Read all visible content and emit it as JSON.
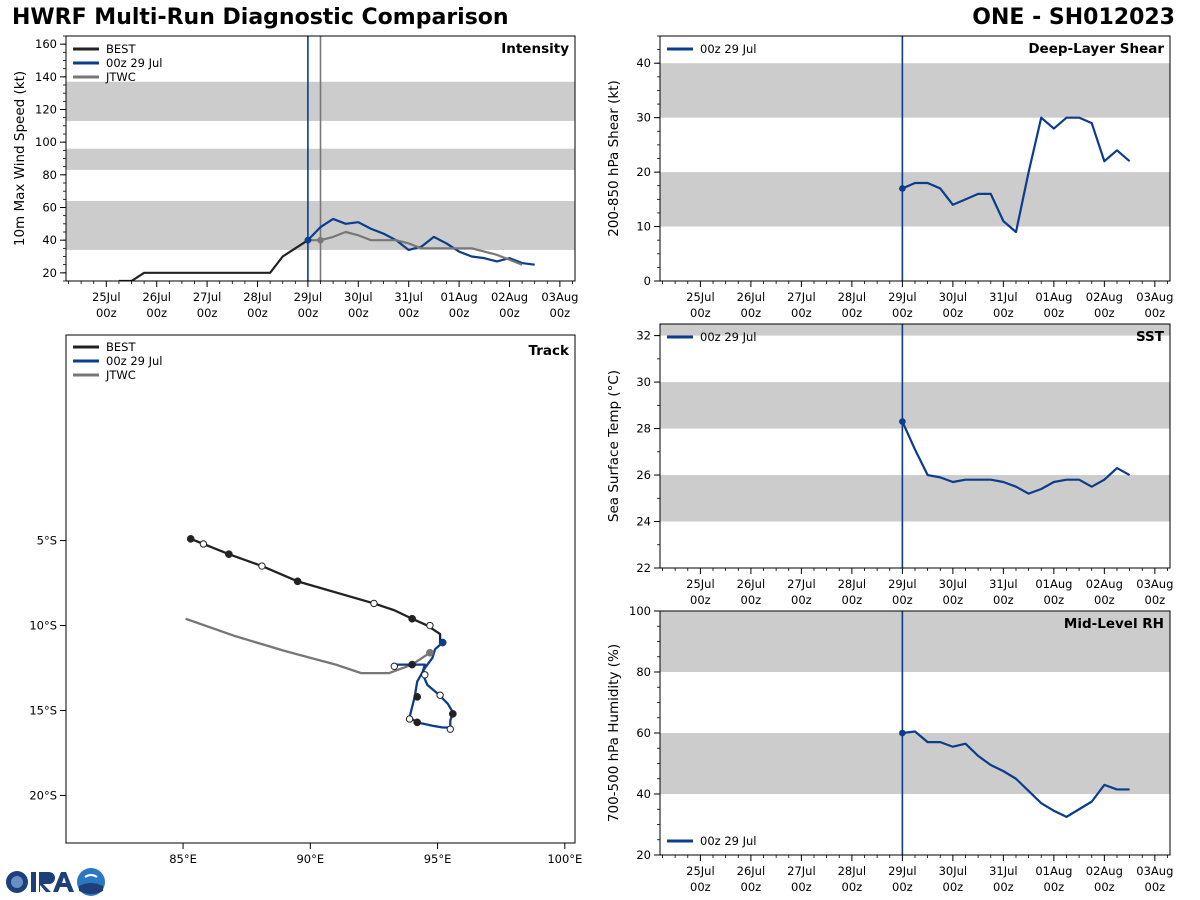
{
  "header": {
    "title": "HWRF Multi-Run Diagnostic Comparison",
    "storm": "ONE - SH012023"
  },
  "colors": {
    "best": "#222222",
    "run": "#0b3d8c",
    "jtwc": "#777777",
    "band": "#cccccc",
    "init_line": "#0b3d8c",
    "jtwc_line": "#777777"
  },
  "time_axis": {
    "labels_top": [
      "25Jul",
      "26Jul",
      "27Jul",
      "28Jul",
      "29Jul",
      "30Jul",
      "31Jul",
      "01Aug",
      "02Aug",
      "03Aug"
    ],
    "labels_bottom": [
      "00z",
      "00z",
      "00z",
      "00z",
      "00z",
      "00z",
      "00z",
      "00z",
      "00z",
      "00z"
    ]
  },
  "chart_data": [
    {
      "id": "intensity",
      "type": "line",
      "title": "Intensity",
      "ylabel": "10m Max Wind Speed (kt)",
      "ylim": [
        15,
        165
      ],
      "yticks": [
        20,
        40,
        60,
        80,
        100,
        120,
        140,
        160
      ],
      "xlim_days": [
        -4.8,
        5.3
      ],
      "bands": [
        [
          34,
          64
        ],
        [
          83,
          96
        ],
        [
          113,
          137
        ]
      ],
      "vlines": [
        {
          "day": 0,
          "series": "run"
        },
        {
          "day": 0.25,
          "series": "jtwc"
        }
      ],
      "legend": [
        "BEST",
        "00z 29 Jul",
        "JTWC"
      ],
      "series": [
        {
          "name": "BEST",
          "key": "best",
          "x": [
            -3.75,
            -3.5,
            -3.25,
            -3,
            -2.75,
            -2.5,
            -2.25,
            -2,
            -1.75,
            -1.5,
            -1.25,
            -1,
            -0.75,
            -0.5,
            -0.25,
            0
          ],
          "y": [
            15,
            15,
            20,
            20,
            20,
            20,
            20,
            20,
            20,
            20,
            20,
            20,
            20,
            30,
            35,
            40
          ]
        },
        {
          "name": "00z 29 Jul",
          "key": "run",
          "x": [
            0,
            0.25,
            0.5,
            0.75,
            1,
            1.25,
            1.5,
            1.75,
            2,
            2.25,
            2.5,
            2.75,
            3,
            3.25,
            3.5,
            3.75,
            4,
            4.25,
            4.5
          ],
          "y": [
            40,
            48,
            53,
            50,
            51,
            47,
            44,
            40,
            34,
            36,
            42,
            38,
            33,
            30,
            29,
            27,
            29,
            26,
            25
          ]
        },
        {
          "name": "JTWC",
          "key": "jtwc",
          "x": [
            0,
            0.25,
            0.5,
            0.75,
            1,
            1.25,
            1.5,
            1.75,
            2,
            2.25,
            2.5,
            2.75,
            3,
            3.25,
            3.5,
            3.75,
            4,
            4.25
          ],
          "y": [
            40,
            40,
            42,
            45,
            43,
            40,
            40,
            40,
            38,
            35,
            35,
            35,
            35,
            35,
            33,
            31,
            28,
            25
          ]
        }
      ],
      "markers": [
        {
          "series": "best",
          "x": 0,
          "y": 40
        },
        {
          "series": "run",
          "x": 0,
          "y": 40
        },
        {
          "series": "jtwc",
          "x": 0.25,
          "y": 40
        }
      ]
    },
    {
      "id": "track",
      "type": "line",
      "title": "Track",
      "xlim": [
        80.4,
        100.4
      ],
      "ylim": [
        -22.8,
        7.1
      ],
      "xticks": [
        85,
        90,
        95,
        100
      ],
      "xtick_labels": [
        "85°E",
        "90°E",
        "95°E",
        "100°E"
      ],
      "yticks": [
        -5,
        -10,
        -15,
        -20
      ],
      "ytick_labels": [
        "5°S",
        "10°S",
        "15°S",
        "20°S"
      ],
      "legend": [
        "BEST",
        "00z 29 Jul",
        "JTWC"
      ],
      "series": [
        {
          "name": "BEST",
          "key": "best",
          "lon": [
            85.3,
            85.8,
            86.8,
            88.1,
            89.5,
            92.5,
            93.3,
            94.0,
            94.6,
            95.1,
            95.1
          ],
          "lat": [
            -4.9,
            -5.2,
            -5.8,
            -6.5,
            -7.4,
            -8.7,
            -9.1,
            -9.6,
            -10.0,
            -10.5,
            -11.0
          ]
        },
        {
          "name": "00z 29 Jul",
          "key": "run",
          "lon": [
            95.2,
            94.9,
            94.8,
            94.5,
            94.2,
            94.1,
            93.9,
            94.2,
            94.8,
            95.2,
            95.5,
            95.5,
            95.6,
            95.4,
            95.0,
            94.6,
            94.4,
            94.5,
            94.1,
            93.3
          ],
          "lat": [
            -11.0,
            -11.4,
            -11.9,
            -12.5,
            -13.3,
            -14.2,
            -15.4,
            -15.7,
            -15.9,
            -16.0,
            -16.0,
            -15.6,
            -15.1,
            -14.6,
            -14.0,
            -13.5,
            -12.8,
            -12.3,
            -12.3,
            -12.3
          ]
        },
        {
          "name": "JTWC",
          "key": "jtwc",
          "lon": [
            85.1,
            87.0,
            89.0,
            91.0,
            92.0,
            93.1,
            94.0,
            94.7
          ],
          "lat": [
            -9.6,
            -10.6,
            -11.5,
            -12.3,
            -12.8,
            -12.8,
            -12.3,
            -11.6
          ]
        }
      ],
      "markers": [
        {
          "series": "best",
          "style": "filled",
          "lon": [
            85.3,
            86.8,
            89.5,
            94.0
          ],
          "lat": [
            -4.9,
            -5.8,
            -7.4,
            -9.6
          ]
        },
        {
          "series": "best",
          "style": "open",
          "lon": [
            85.8,
            88.1,
            92.5,
            94.7
          ],
          "lat": [
            -5.2,
            -6.5,
            -8.7,
            -10.0
          ]
        },
        {
          "series": "run",
          "style": "filled",
          "lon": [
            95.2
          ],
          "lat": [
            -11.0
          ]
        },
        {
          "series": "best",
          "style": "filled",
          "lon": [
            94.2,
            95.6,
            94.2,
            94.0
          ],
          "lat": [
            -14.2,
            -15.2,
            -15.7,
            -12.3
          ]
        },
        {
          "series": "best",
          "style": "open",
          "lon": [
            93.3,
            94.5,
            95.1,
            93.9,
            95.5
          ],
          "lat": [
            -12.4,
            -12.9,
            -14.1,
            -15.5,
            -16.1
          ]
        },
        {
          "series": "jtwc",
          "style": "filled",
          "lon": [
            94.7
          ],
          "lat": [
            -11.6
          ]
        }
      ]
    },
    {
      "id": "shear",
      "type": "line",
      "title": "Deep-Layer Shear",
      "ylabel": "200-850 hPa Shear (kt)",
      "ylim": [
        0,
        45
      ],
      "yticks": [
        0,
        10,
        20,
        30,
        40
      ],
      "xlim_days": [
        -4.8,
        5.3
      ],
      "bands": [
        [
          10,
          20
        ],
        [
          30,
          40
        ]
      ],
      "vlines": [
        {
          "day": 0,
          "series": "run"
        }
      ],
      "legend": [
        "00z 29 Jul"
      ],
      "series": [
        {
          "name": "00z 29 Jul",
          "key": "run",
          "x": [
            0,
            0.25,
            0.5,
            0.75,
            1,
            1.25,
            1.5,
            1.75,
            2,
            2.25,
            2.5,
            2.75,
            3,
            3.25,
            3.5,
            3.75,
            4,
            4.25,
            4.5
          ],
          "y": [
            17,
            18,
            18,
            17,
            14,
            15,
            16,
            16,
            11,
            9,
            20,
            30,
            28,
            30,
            30,
            29,
            22,
            24,
            22
          ]
        }
      ],
      "markers": [
        {
          "series": "run",
          "x": 0,
          "y": 17
        }
      ]
    },
    {
      "id": "sst",
      "type": "line",
      "title": "SST",
      "ylabel": "Sea Surface Temp (°C)",
      "ylim": [
        22,
        32.5
      ],
      "yticks": [
        22,
        24,
        26,
        28,
        30,
        32
      ],
      "xlim_days": [
        -4.8,
        5.3
      ],
      "bands": [
        [
          24,
          26
        ],
        [
          28,
          30
        ],
        [
          32,
          34
        ]
      ],
      "vlines": [
        {
          "day": 0,
          "series": "run"
        }
      ],
      "legend": [
        "00z 29 Jul"
      ],
      "series": [
        {
          "name": "00z 29 Jul",
          "key": "run",
          "x": [
            0,
            0.25,
            0.5,
            0.75,
            1,
            1.25,
            1.5,
            1.75,
            2,
            2.25,
            2.5,
            2.75,
            3,
            3.25,
            3.5,
            3.75,
            4,
            4.25,
            4.5
          ],
          "y": [
            28.3,
            27.1,
            26.0,
            25.9,
            25.7,
            25.8,
            25.8,
            25.8,
            25.7,
            25.5,
            25.2,
            25.4,
            25.7,
            25.8,
            25.8,
            25.5,
            25.8,
            26.3,
            26.0
          ]
        }
      ],
      "markers": [
        {
          "series": "run",
          "x": 0,
          "y": 28.3
        }
      ]
    },
    {
      "id": "rh",
      "type": "line",
      "title": "Mid-Level RH",
      "ylabel": "700-500 hPa Humidity (%)",
      "ylim": [
        20,
        100
      ],
      "yticks": [
        20,
        40,
        60,
        80,
        100
      ],
      "xlim_days": [
        -4.8,
        5.3
      ],
      "bands": [
        [
          40,
          60
        ],
        [
          80,
          100
        ]
      ],
      "vlines": [
        {
          "day": 0,
          "series": "run"
        }
      ],
      "legend": [
        "00z 29 Jul"
      ],
      "legend_position": "lower-left",
      "series": [
        {
          "name": "00z 29 Jul",
          "key": "run",
          "x": [
            0,
            0.25,
            0.5,
            0.75,
            1,
            1.25,
            1.5,
            1.75,
            2,
            2.25,
            2.5,
            2.75,
            3,
            3.25,
            3.5,
            3.75,
            4,
            4.25,
            4.5
          ],
          "y": [
            60,
            60.5,
            57,
            57,
            55.5,
            56.5,
            52.5,
            49.5,
            47.5,
            45,
            41,
            37,
            34.5,
            32.5,
            35,
            37.5,
            43,
            41.5,
            41.5
          ]
        }
      ],
      "markers": [
        {
          "series": "run",
          "x": 0,
          "y": 60
        }
      ]
    }
  ]
}
